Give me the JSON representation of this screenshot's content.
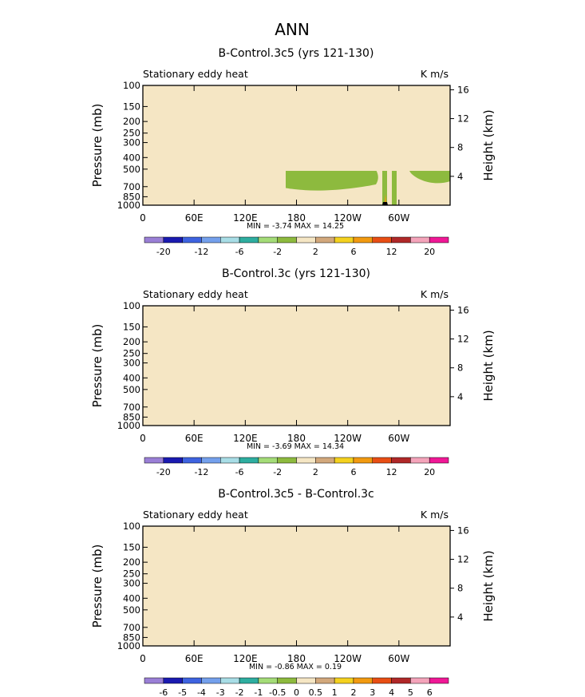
{
  "figure": {
    "title": "ANN"
  },
  "chart_data": [
    {
      "type": "heatmap",
      "title": "B-Control.3c5 (yrs 121-130)",
      "subtitle_left": "Stationary eddy heat",
      "units": "K m/s",
      "xlabel": "",
      "ylabel": "Pressure (mb)",
      "ylabel_right": "Height (km)",
      "xticks": [
        "0",
        "60E",
        "120E",
        "180",
        "120W",
        "60W"
      ],
      "yticks": [
        100,
        150,
        200,
        250,
        300,
        400,
        500,
        700,
        850,
        1000
      ],
      "yticks_right": [
        16,
        12,
        8,
        4
      ],
      "ylim": [
        1000,
        100
      ],
      "stats": "MIN =  -3.74   MAX =   14.25",
      "colorbar_labels": [
        "-20",
        "-12",
        "-6",
        "-2",
        "2",
        "6",
        "12",
        "20"
      ]
    },
    {
      "type": "heatmap",
      "title": "B-Control.3c (yrs 121-130)",
      "subtitle_left": "Stationary eddy heat",
      "units": "K m/s",
      "xlabel": "",
      "ylabel": "Pressure (mb)",
      "ylabel_right": "Height (km)",
      "xticks": [
        "0",
        "60E",
        "120E",
        "180",
        "120W",
        "60W"
      ],
      "yticks": [
        100,
        150,
        200,
        250,
        300,
        400,
        500,
        700,
        850,
        1000
      ],
      "yticks_right": [
        16,
        12,
        8,
        4
      ],
      "ylim": [
        1000,
        100
      ],
      "stats": "MIN =  -3.69   MAX =   14.34",
      "colorbar_labels": [
        "-20",
        "-12",
        "-6",
        "-2",
        "2",
        "6",
        "12",
        "20"
      ]
    },
    {
      "type": "heatmap",
      "title": "B-Control.3c5 - B-Control.3c",
      "subtitle_left": "Stationary eddy heat",
      "units": "K m/s",
      "xlabel": "",
      "ylabel": "Pressure (mb)",
      "ylabel_right": "Height (km)",
      "xticks": [
        "0",
        "60E",
        "120E",
        "180",
        "120W",
        "60W"
      ],
      "yticks": [
        100,
        150,
        200,
        250,
        300,
        400,
        500,
        700,
        850,
        1000
      ],
      "yticks_right": [
        16,
        12,
        8,
        4
      ],
      "ylim": [
        1000,
        100
      ],
      "stats": "MIN =  -0.86   MAX =    0.19",
      "colorbar_labels": [
        "-6",
        "-5",
        "-4",
        "-3",
        "-2",
        "-1",
        "-0.5",
        "0",
        "0.5",
        "1",
        "2",
        "3",
        "4",
        "5",
        "6"
      ]
    }
  ],
  "colors": {
    "background_fill": "#f5e6c4",
    "main_fill": "#8dba3e",
    "terrain": "#000000",
    "colorbar_main": [
      "#9a7fd6",
      "#1a1ab0",
      "#3e63e0",
      "#74a0ec",
      "#a8dde6",
      "#2eaea0",
      "#a4dc78",
      "#8dba3e",
      "#f5e6c4",
      "#d2a87c",
      "#f4d11f",
      "#f29a10",
      "#e84e14",
      "#b02828",
      "#f4a4ba",
      "#f01896"
    ],
    "colorbar_diff": [
      "#9a7fd6",
      "#1a1ab0",
      "#3e63e0",
      "#74a0ec",
      "#a8dde6",
      "#2eaea0",
      "#a4dc78",
      "#8dba3e",
      "#f5e6c4",
      "#d2a87c",
      "#f4d11f",
      "#f29a10",
      "#e84e14",
      "#b02828",
      "#f4a4ba",
      "#f01896"
    ]
  }
}
